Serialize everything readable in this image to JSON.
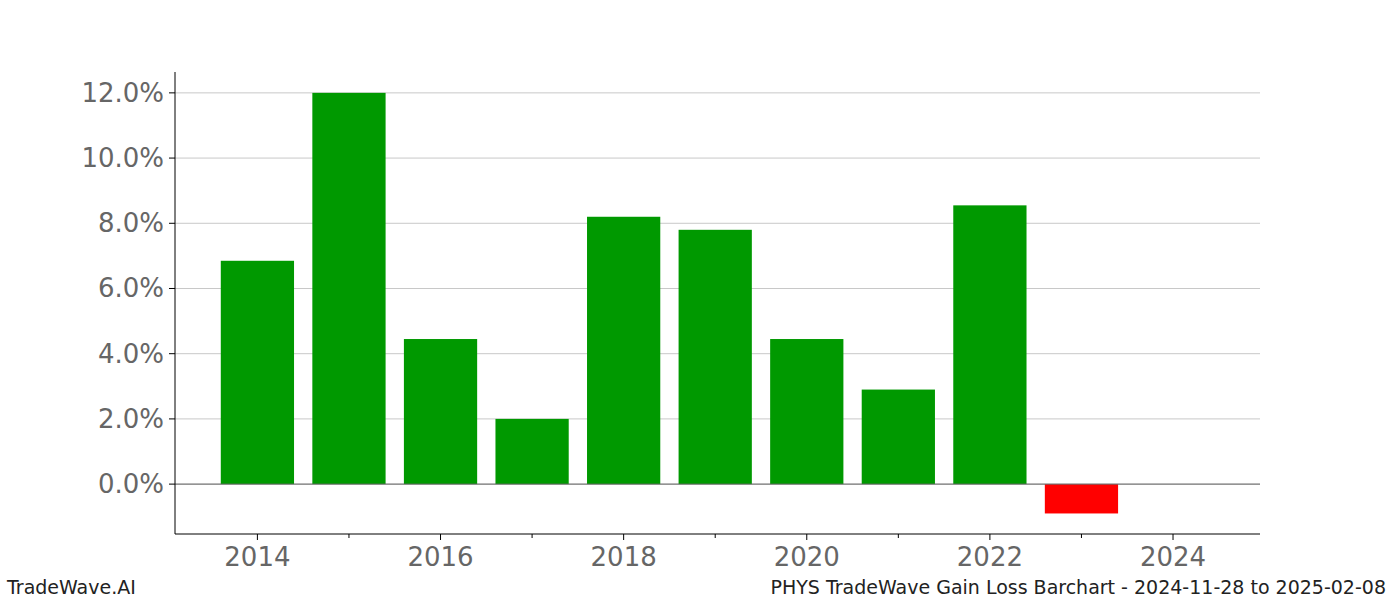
{
  "chart_data": {
    "type": "bar",
    "title": "PHYS TradeWave Gain Loss Barchart - 2024-11-28 to 2025-02-08",
    "source": "TradeWave.AI",
    "x": [
      2014,
      2015,
      2016,
      2017,
      2018,
      2019,
      2020,
      2021,
      2022,
      2023
    ],
    "values": [
      6.85,
      12.0,
      4.45,
      2.0,
      8.2,
      7.8,
      4.45,
      2.9,
      8.55,
      -0.9
    ],
    "colors": [
      "#009900",
      "#009900",
      "#009900",
      "#009900",
      "#009900",
      "#009900",
      "#009900",
      "#009900",
      "#009900",
      "#ff0000"
    ],
    "xlim": [
      2013.1,
      2024.95
    ],
    "xticks": [
      2014,
      2016,
      2018,
      2020,
      2022,
      2024
    ],
    "ylim": [
      -1.53,
      12.64
    ],
    "yticks": [
      {
        "value": 0,
        "label": "0.0%"
      },
      {
        "value": 2,
        "label": "2.0%"
      },
      {
        "value": 4,
        "label": "4.0%"
      },
      {
        "value": 6,
        "label": "6.0%"
      },
      {
        "value": 8,
        "label": "8.0%"
      },
      {
        "value": 10,
        "label": "10.0%"
      },
      {
        "value": 12,
        "label": "12.0%"
      }
    ],
    "grid": true
  }
}
